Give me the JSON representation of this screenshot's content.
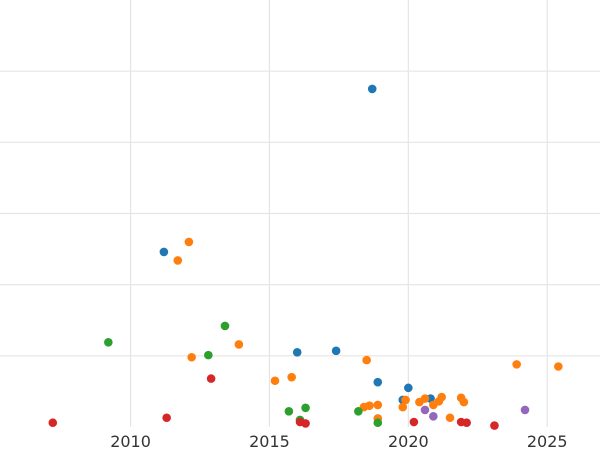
{
  "chart_data": {
    "type": "scatter",
    "title": "",
    "xlabel": "",
    "ylabel": "",
    "xlim": [
      2005.3,
      2026.9
    ],
    "ylim": [
      0,
      600
    ],
    "x_ticks": [
      2010,
      2015,
      2020,
      2025
    ],
    "x_tick_labels": [
      "2010",
      "2015",
      "2020",
      "2025"
    ],
    "y_gridlines": [
      100,
      200,
      300,
      400,
      500
    ],
    "grid": true,
    "legend": "none",
    "series": [
      {
        "color": "#1f77b4",
        "points": [
          [
            2011.2,
            246
          ],
          [
            2016.0,
            105
          ],
          [
            2017.4,
            107
          ],
          [
            2018.7,
            475
          ],
          [
            2018.9,
            63
          ],
          [
            2019.8,
            38
          ],
          [
            2020.0,
            55
          ],
          [
            2020.8,
            40
          ]
        ]
      },
      {
        "color": "#ff7f0e",
        "points": [
          [
            2011.7,
            234
          ],
          [
            2012.1,
            260
          ],
          [
            2012.2,
            98
          ],
          [
            2013.9,
            116
          ],
          [
            2015.2,
            65
          ],
          [
            2015.8,
            70
          ],
          [
            2018.4,
            28
          ],
          [
            2018.5,
            94
          ],
          [
            2018.6,
            30
          ],
          [
            2018.9,
            31
          ],
          [
            2018.9,
            12
          ],
          [
            2019.8,
            28
          ],
          [
            2019.9,
            38
          ],
          [
            2020.4,
            35
          ],
          [
            2020.6,
            40
          ],
          [
            2020.9,
            31
          ],
          [
            2021.1,
            36
          ],
          [
            2021.2,
            42
          ],
          [
            2021.5,
            13
          ],
          [
            2021.9,
            41
          ],
          [
            2022.0,
            35
          ],
          [
            2023.9,
            88
          ],
          [
            2025.4,
            85
          ]
        ]
      },
      {
        "color": "#2ca02c",
        "points": [
          [
            2009.2,
            119
          ],
          [
            2012.8,
            101
          ],
          [
            2013.4,
            142
          ],
          [
            2015.7,
            22
          ],
          [
            2016.1,
            10
          ],
          [
            2016.3,
            27
          ],
          [
            2018.2,
            22
          ],
          [
            2018.9,
            6
          ]
        ]
      },
      {
        "color": "#d62728",
        "points": [
          [
            2007.2,
            6
          ],
          [
            2011.3,
            13
          ],
          [
            2012.9,
            68
          ],
          [
            2016.1,
            7
          ],
          [
            2016.3,
            5
          ],
          [
            2020.2,
            7
          ],
          [
            2021.9,
            7
          ],
          [
            2022.1,
            6
          ],
          [
            2023.1,
            2
          ]
        ]
      },
      {
        "color": "#9467bd",
        "points": [
          [
            2020.6,
            24
          ],
          [
            2020.9,
            15
          ],
          [
            2024.2,
            24
          ]
        ]
      }
    ]
  }
}
